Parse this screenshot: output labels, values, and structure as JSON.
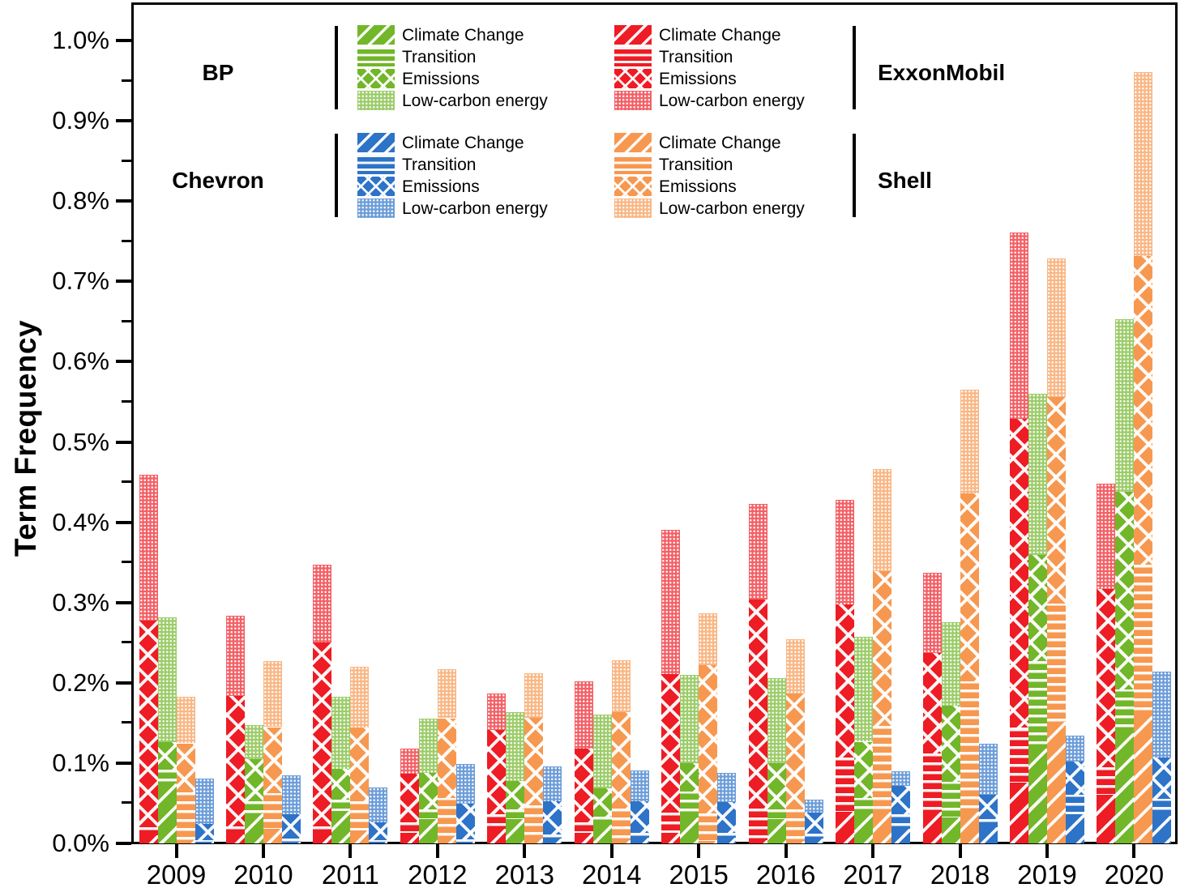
{
  "chart_data": {
    "type": "bar",
    "subtype": "grouped-stacked",
    "title": "",
    "xlabel": "",
    "ylabel": "Term Frequency",
    "ylim_percent": [
      0.0,
      1.047
    ],
    "grid": false,
    "y_tick_labels": [
      "0.0%",
      "0.1%",
      "0.2%",
      "0.3%",
      "0.4%",
      "0.5%",
      "0.6%",
      "0.7%",
      "0.8%",
      "0.9%",
      "1.0%"
    ],
    "years": [
      "2009",
      "2010",
      "2011",
      "2012",
      "2013",
      "2014",
      "2015",
      "2016",
      "2017",
      "2018",
      "2019",
      "2020"
    ],
    "categories": [
      "Climate Change",
      "Transition",
      "Emissions",
      "Low-carbon energy"
    ],
    "category_patterns": [
      "diagonal-hatch",
      "horizontal-lines",
      "cross-hatch-x",
      "fine-dots"
    ],
    "stack_order_bottom_to_top": [
      "Climate Change",
      "Transition",
      "Emissions",
      "Low-carbon energy"
    ],
    "bar_order_left_to_right": [
      "ExxonMobil",
      "BP",
      "Shell",
      "Chevron"
    ],
    "series": [
      {
        "name": "ExxonMobil",
        "color": "#ee1c24",
        "values_percent": [
          [
            0.01,
            0.01,
            0.258,
            0.182
          ],
          [
            0.011,
            0.01,
            0.163,
            0.1
          ],
          [
            0.01,
            0.011,
            0.229,
            0.097
          ],
          [
            0.013,
            0.013,
            0.061,
            0.031
          ],
          [
            0.018,
            0.018,
            0.105,
            0.045
          ],
          [
            0.013,
            0.013,
            0.092,
            0.084
          ],
          [
            0.013,
            0.025,
            0.173,
            0.18
          ],
          [
            0.004,
            0.039,
            0.261,
            0.119
          ],
          [
            0.039,
            0.068,
            0.191,
            0.13
          ],
          [
            0.039,
            0.073,
            0.125,
            0.1
          ],
          [
            0.076,
            0.068,
            0.385,
            0.232
          ],
          [
            0.061,
            0.034,
            0.222,
            0.131
          ]
        ]
      },
      {
        "name": "BP",
        "color": "#72b62a",
        "values_percent": [
          [
            0.075,
            0.017,
            0.034,
            0.155
          ],
          [
            0.037,
            0.015,
            0.053,
            0.042
          ],
          [
            0.04,
            0.014,
            0.039,
            0.09
          ],
          [
            0.03,
            0.012,
            0.046,
            0.068
          ],
          [
            0.03,
            0.012,
            0.036,
            0.086
          ],
          [
            0.023,
            0.01,
            0.036,
            0.092
          ],
          [
            0.032,
            0.033,
            0.035,
            0.11
          ],
          [
            0.03,
            0.012,
            0.058,
            0.106
          ],
          [
            0.037,
            0.02,
            0.07,
            0.13
          ],
          [
            0.032,
            0.045,
            0.095,
            0.104
          ],
          [
            0.118,
            0.109,
            0.132,
            0.201
          ],
          [
            0.137,
            0.055,
            0.246,
            0.215
          ]
        ]
      },
      {
        "name": "Shell",
        "color": "#f79850",
        "values_percent": [
          [
            0.004,
            0.06,
            0.061,
            0.058
          ],
          [
            0.018,
            0.045,
            0.082,
            0.082
          ],
          [
            0.016,
            0.036,
            0.092,
            0.076
          ],
          [
            0.009,
            0.048,
            0.099,
            0.061
          ],
          [
            0.006,
            0.041,
            0.109,
            0.056
          ],
          [
            0.004,
            0.039,
            0.12,
            0.065
          ],
          [
            0.003,
            0.034,
            0.185,
            0.065
          ],
          [
            0.003,
            0.039,
            0.145,
            0.068
          ],
          [
            0.039,
            0.107,
            0.193,
            0.127
          ],
          [
            0.039,
            0.163,
            0.234,
            0.129
          ],
          [
            0.151,
            0.148,
            0.257,
            0.173
          ],
          [
            0.158,
            0.189,
            0.385,
            0.229
          ]
        ]
      },
      {
        "name": "Chevron",
        "color": "#2d73c8",
        "values_percent": [
          [
            0.002,
            0.002,
            0.02,
            0.057
          ],
          [
            0.002,
            0.004,
            0.03,
            0.048
          ],
          [
            0.002,
            0.002,
            0.022,
            0.043
          ],
          [
            0.002,
            0.003,
            0.044,
            0.049
          ],
          [
            0.006,
            0.005,
            0.041,
            0.043
          ],
          [
            0.007,
            0.006,
            0.039,
            0.038
          ],
          [
            0.007,
            0.006,
            0.038,
            0.036
          ],
          [
            0.006,
            0.006,
            0.026,
            0.016
          ],
          [
            0.018,
            0.018,
            0.036,
            0.018
          ],
          [
            0.02,
            0.01,
            0.031,
            0.064
          ],
          [
            0.036,
            0.025,
            0.041,
            0.032
          ],
          [
            0.034,
            0.022,
            0.051,
            0.107
          ]
        ]
      }
    ],
    "legend": {
      "item_labels": [
        "Climate Change",
        "Transition",
        "Emissions",
        "Low-carbon energy"
      ],
      "blocks": [
        {
          "company": "BP",
          "series": "BP",
          "label_side": "left",
          "row": 0,
          "col": 0
        },
        {
          "company": "ExxonMobil",
          "series": "ExxonMobil",
          "label_side": "right",
          "row": 0,
          "col": 1
        },
        {
          "company": "Chevron",
          "series": "Chevron",
          "label_side": "left",
          "row": 1,
          "col": 0
        },
        {
          "company": "Shell",
          "series": "Shell",
          "label_side": "right",
          "row": 1,
          "col": 1
        }
      ]
    }
  }
}
